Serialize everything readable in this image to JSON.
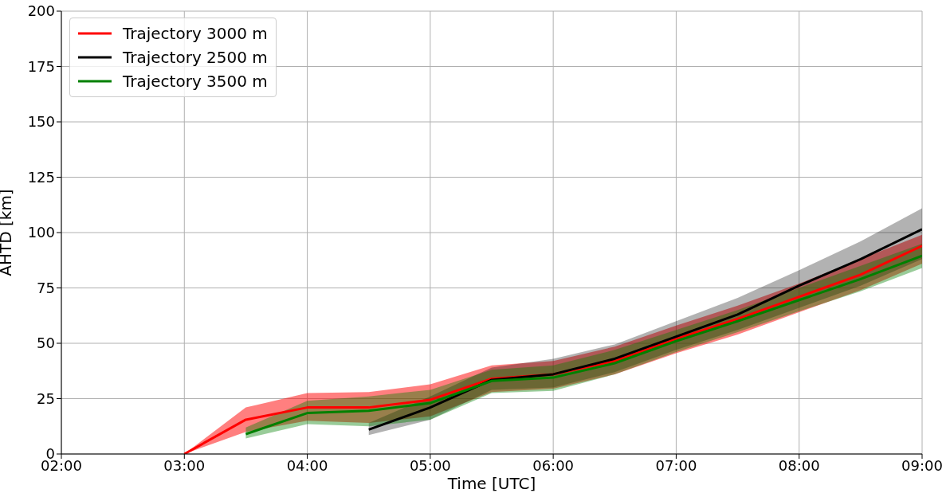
{
  "chart_data": {
    "type": "line",
    "xlabel": "Time [UTC]",
    "ylabel": "AHTD [km]",
    "xlim": [
      2,
      9
    ],
    "xticks": [
      {
        "value": 2,
        "label": "02:00"
      },
      {
        "value": 3,
        "label": "03:00"
      },
      {
        "value": 4,
        "label": "04:00"
      },
      {
        "value": 5,
        "label": "05:00"
      },
      {
        "value": 6,
        "label": "06:00"
      },
      {
        "value": 7,
        "label": "07:00"
      },
      {
        "value": 8,
        "label": "08:00"
      },
      {
        "value": 9,
        "label": "09:00"
      }
    ],
    "ylim": [
      0,
      200
    ],
    "yticks": [
      0,
      25,
      50,
      75,
      100,
      125,
      150,
      175,
      200
    ],
    "grid": true,
    "legend": "top left",
    "marker": "none",
    "line_style": "solid",
    "series": [
      {
        "name": "Trajectory 3000 m",
        "color": "#ff0000",
        "x": [
          3,
          3.5,
          4,
          4.5,
          5,
          5.5,
          6,
          6.5,
          7,
          7.5,
          8,
          8.5,
          9
        ],
        "values": [
          0,
          15.5,
          21,
          21,
          24.5,
          34,
          36,
          42,
          52,
          61,
          71,
          81,
          94
        ],
        "lower": [
          0,
          10,
          15,
          14,
          17,
          28,
          29.5,
          36,
          45.5,
          54,
          64,
          74,
          86
        ],
        "upper": [
          0,
          21,
          27.5,
          28,
          31.5,
          40,
          42,
          48.5,
          58,
          67,
          77,
          88,
          99
        ]
      },
      {
        "name": "Trajectory 2500 m",
        "color": "#000000",
        "x": [
          4.5,
          5,
          5.5,
          6,
          6.5,
          7,
          7.5,
          8,
          8.5,
          9
        ],
        "values": [
          11,
          21,
          33.5,
          36,
          43,
          53,
          63,
          76,
          88,
          101.5
        ],
        "lower": [
          8.5,
          15.5,
          29,
          30,
          37,
          47,
          56,
          66,
          76,
          88
        ],
        "upper": [
          14,
          26,
          39,
          43,
          49.5,
          60,
          70.5,
          83,
          96,
          111
        ]
      },
      {
        "name": "Trajectory 3500 m",
        "color": "#008000",
        "x": [
          3.5,
          4,
          4.5,
          5,
          5.5,
          6,
          6.5,
          7,
          7.5,
          8,
          8.5,
          9
        ],
        "values": [
          9,
          18.5,
          19.5,
          23,
          33,
          34.5,
          41,
          51,
          60,
          69.5,
          79,
          89.5
        ],
        "lower": [
          7,
          13.5,
          12.5,
          15.5,
          27.5,
          28.5,
          36,
          46,
          55,
          64.5,
          73.5,
          84
        ],
        "upper": [
          12,
          24,
          26,
          29,
          38,
          40,
          47,
          56,
          65,
          75,
          85,
          95
        ]
      }
    ]
  }
}
